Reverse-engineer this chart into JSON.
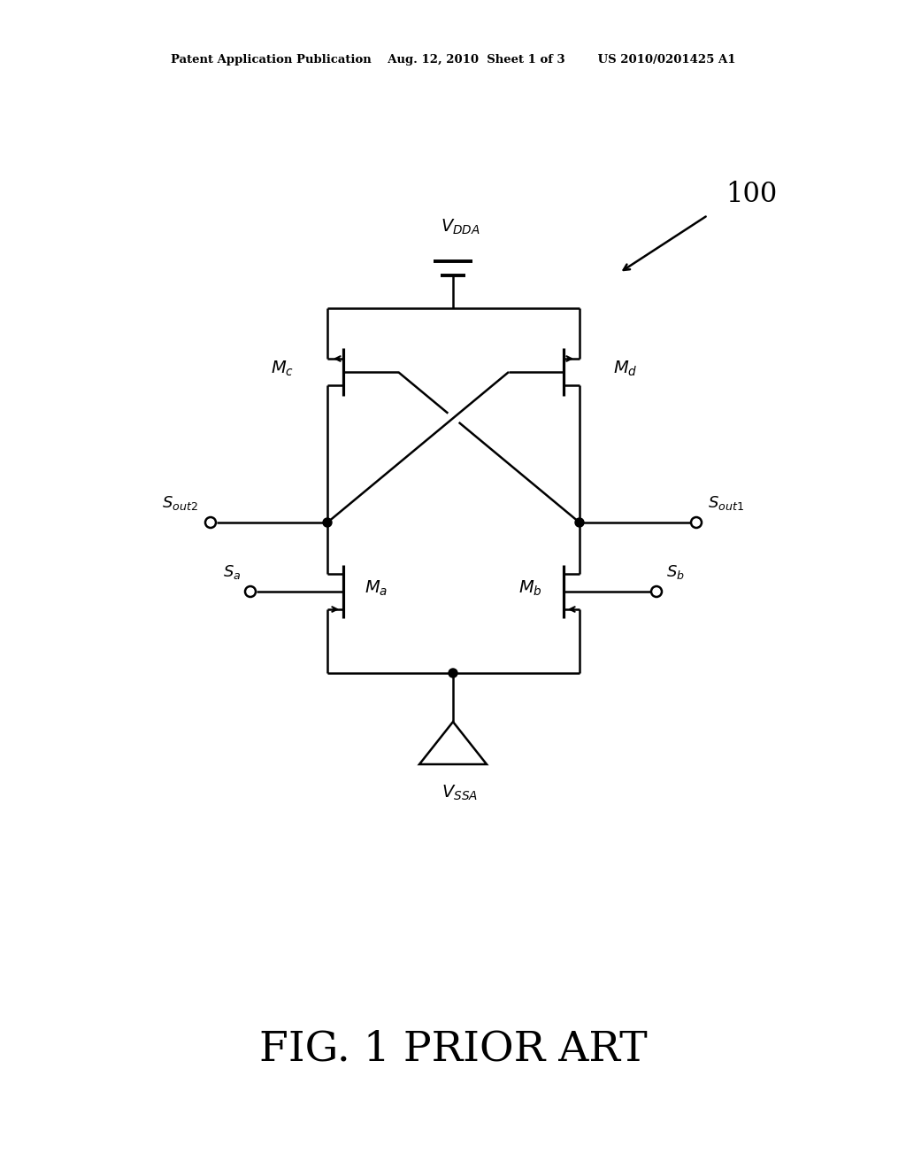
{
  "bg_color": "#ffffff",
  "line_color": "#000000",
  "lw": 1.8,
  "header": "Patent Application Publication    Aug. 12, 2010  Sheet 1 of 3        US 2010/0201425 A1",
  "fig_label": "FIG. 1 PRIOR ART",
  "label_100": "100"
}
